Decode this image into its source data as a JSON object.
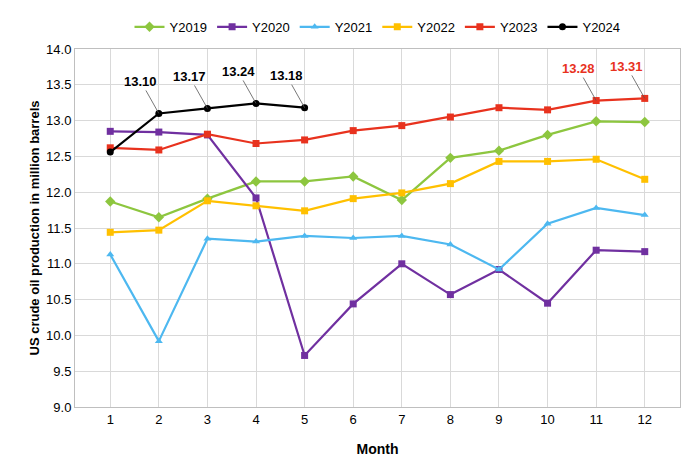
{
  "chart_data": {
    "type": "line",
    "x_label": "Month",
    "y_label": "US crude oil production in million barrels",
    "categories": [
      "1",
      "2",
      "3",
      "4",
      "5",
      "6",
      "7",
      "8",
      "9",
      "10",
      "11",
      "12"
    ],
    "series": [
      {
        "name": "Y2019",
        "color": "#8dc63f",
        "marker": "diamond",
        "values": [
          11.87,
          11.65,
          11.91,
          12.15,
          12.15,
          12.22,
          11.89,
          12.48,
          12.58,
          12.8,
          12.99,
          12.98
        ]
      },
      {
        "name": "Y2020",
        "color": "#7030a0",
        "marker": "square",
        "values": [
          12.85,
          12.84,
          12.8,
          11.92,
          9.72,
          10.44,
          11.0,
          10.57,
          10.92,
          10.45,
          11.19,
          11.17
        ]
      },
      {
        "name": "Y2021",
        "color": "#4db8f0",
        "marker": "triangle-up",
        "values": [
          11.13,
          9.92,
          11.35,
          11.31,
          11.39,
          11.36,
          11.39,
          11.27,
          10.92,
          11.56,
          11.78,
          11.68
        ]
      },
      {
        "name": "Y2022",
        "color": "#ffc000",
        "marker": "square",
        "values": [
          11.44,
          11.47,
          11.88,
          11.81,
          11.74,
          11.91,
          11.99,
          12.12,
          12.43,
          12.43,
          12.46,
          12.18
        ]
      },
      {
        "name": "Y2023",
        "color": "#e8321e",
        "marker": "square",
        "values": [
          12.62,
          12.59,
          12.81,
          12.68,
          12.73,
          12.86,
          12.93,
          13.05,
          13.18,
          13.15,
          13.28,
          13.31
        ]
      },
      {
        "name": "Y2024",
        "color": "#000000",
        "marker": "circle",
        "values": [
          12.56,
          13.1,
          13.17,
          13.24,
          13.18,
          null,
          null,
          null,
          null,
          null,
          null,
          null
        ]
      }
    ],
    "annotations": [
      {
        "text": "13.10",
        "x": "2",
        "y": 13.1,
        "color": "#000000"
      },
      {
        "text": "13.17",
        "x": "3",
        "y": 13.17,
        "color": "#000000"
      },
      {
        "text": "13.24",
        "x": "4",
        "y": 13.24,
        "color": "#000000"
      },
      {
        "text": "13.18",
        "x": "5",
        "y": 13.18,
        "color": "#000000"
      },
      {
        "text": "13.28",
        "x": "11",
        "y": 13.28,
        "color": "#e8321e"
      },
      {
        "text": "13.31",
        "x": "12",
        "y": 13.31,
        "color": "#e8321e"
      }
    ],
    "ylim": [
      9,
      14
    ],
    "yticks": [
      {
        "value": 9,
        "label": "9.0"
      },
      9.5,
      {
        "value": 10,
        "label": "10.0"
      },
      10.5,
      {
        "value": 11,
        "label": "11.0"
      },
      11.5,
      {
        "value": 12,
        "label": "12.0"
      },
      12.5,
      {
        "value": 13,
        "label": "13.0"
      },
      13.5,
      {
        "value": 14,
        "label": "14.0"
      }
    ],
    "grid": true,
    "legend": "top"
  }
}
